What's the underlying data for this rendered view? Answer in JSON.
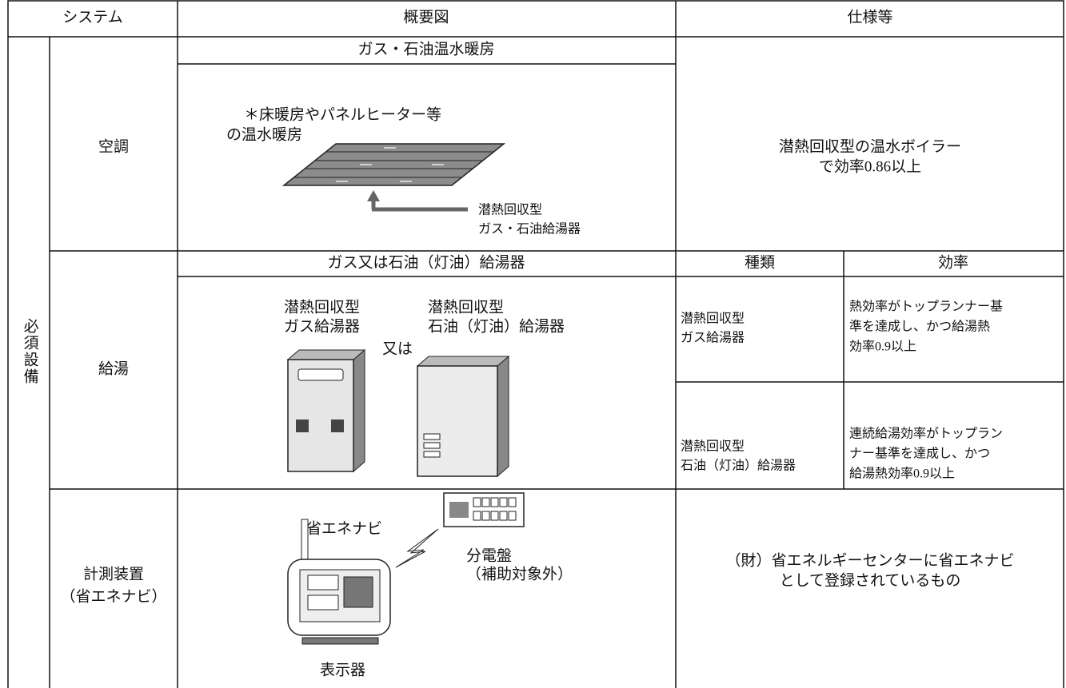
{
  "header": {
    "system": "システム",
    "diagram": "概要図",
    "spec": "仕様等"
  },
  "group_label": "必須設備",
  "rows": [
    {
      "system": [
        "空調"
      ],
      "diagram_title": "ガス・石油温水暖房",
      "diagram_note": [
        "＊床暖房やパネルヒーター等",
        "の温水暖房"
      ],
      "diagram_label": [
        "潜熱回収型",
        "ガス・石油給湯器"
      ],
      "spec": [
        "潜熱回収型の温水ボイラー",
        "で効率0.86以上"
      ]
    },
    {
      "system": [
        "給湯"
      ],
      "diagram_title": "ガス又は石油（灯油）給湯器",
      "diagram_labels": {
        "gas": [
          "潜熱回収型",
          "ガス給湯器"
        ],
        "oil": [
          "潜熱回収型",
          "石油（灯油）給湯器"
        ],
        "or": "又は"
      },
      "spec_header": {
        "type": "種類",
        "efficiency": "効率"
      },
      "spec_rows": [
        {
          "type": [
            "潜熱回収型",
            "ガス給湯器"
          ],
          "efficiency": [
            "熱効率がトップランナー基",
            "準を達成し、かつ給湯熱",
            "効率0.9以上"
          ]
        },
        {
          "type": [
            "潜熱回収型",
            "石油（灯油）給湯器"
          ],
          "efficiency": [
            "連続給湯効率がトップラン",
            "ナー基準を達成し、かつ",
            "給湯熱効率0.9以上"
          ]
        }
      ]
    },
    {
      "system": [
        "計測装置",
        "（省エネナビ）"
      ],
      "diagram_labels": {
        "navi": "省エネナビ",
        "board": [
          "分電盤",
          "（補助対象外）"
        ],
        "display": "表示器"
      },
      "spec": [
        "（財）省エネルギーセンターに省エネナビ",
        "として登録されているもの"
      ]
    }
  ]
}
